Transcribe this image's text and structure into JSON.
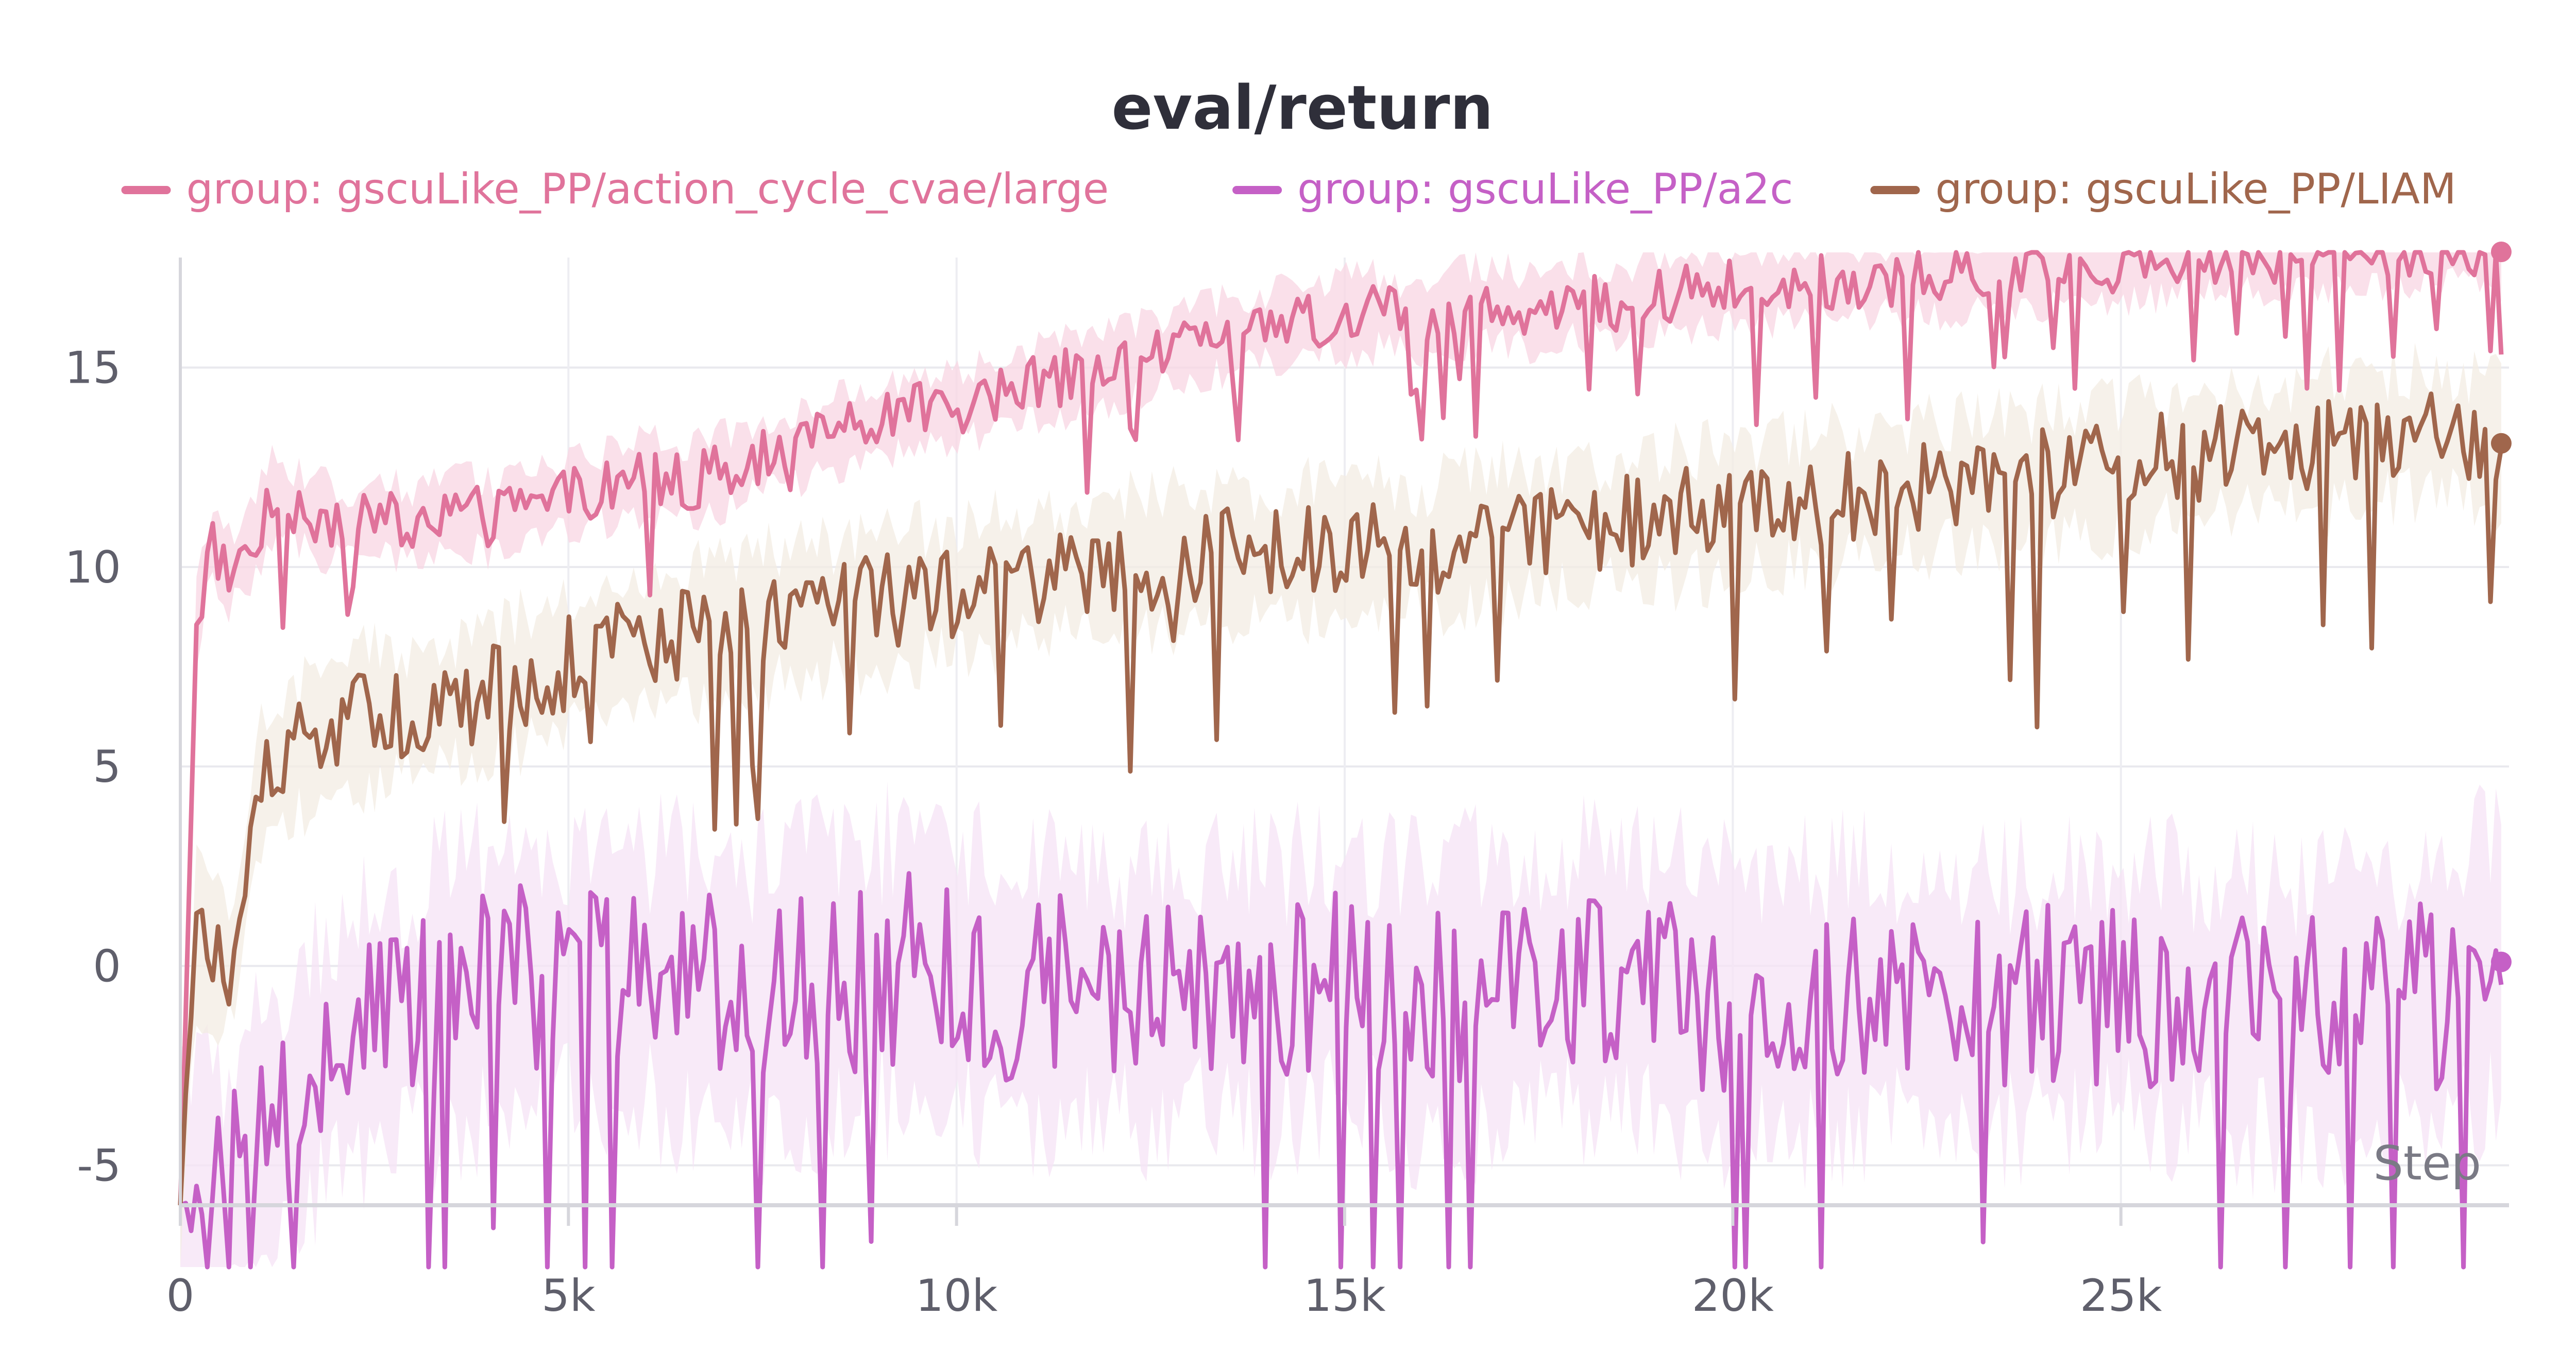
{
  "chart_data": {
    "type": "line",
    "title": "eval/return",
    "xlabel": "Step",
    "ylabel": "",
    "xlim": [
      0,
      30000
    ],
    "ylim": [
      -6,
      17.5
    ],
    "xticks": [
      0,
      5000,
      10000,
      15000,
      20000,
      25000
    ],
    "xtick_labels": [
      "0",
      "5k",
      "10k",
      "15k",
      "20k",
      "25k"
    ],
    "yticks": [
      -5,
      0,
      5,
      10,
      15
    ],
    "ytick_labels": [
      "-5",
      "0",
      "5",
      "10",
      "15"
    ],
    "grid": true,
    "legend_position": "top",
    "series": [
      {
        "name": "group: gscuLike_PP/action_cycle_cvae/large",
        "color": "#e0739b",
        "band_color": "#f8d6e3",
        "x": [
          0,
          200,
          400,
          600,
          900,
          1200,
          1500,
          1800,
          2200,
          2600,
          3000,
          3500,
          4000,
          4500,
          5000,
          5500,
          6000,
          6500,
          7000,
          7500,
          8000,
          8500,
          9000,
          9500,
          10000,
          10500,
          11000,
          11500,
          12000,
          12500,
          13000,
          13500,
          14000,
          14500,
          15000,
          15500,
          16000,
          16500,
          17000,
          17500,
          18000,
          18500,
          19000,
          19500,
          20000,
          21000,
          22000,
          23000,
          24000,
          25000,
          26000,
          27000,
          28000,
          29000,
          29900
        ],
        "values": [
          -6,
          8.5,
          10.7,
          9.8,
          10.5,
          11.8,
          11.5,
          11.2,
          11.0,
          11.3,
          11.0,
          11.5,
          11.2,
          11.6,
          11.8,
          12.0,
          12.3,
          12.1,
          12.4,
          12.8,
          13.0,
          13.4,
          13.6,
          13.9,
          14.0,
          14.3,
          14.6,
          14.8,
          15.0,
          15.3,
          15.6,
          15.8,
          16.0,
          16.2,
          16.3,
          16.4,
          16.1,
          16.5,
          16.6,
          16.3,
          16.7,
          16.5,
          16.8,
          16.9,
          17.0,
          17.1,
          17.2,
          17.3,
          17.4,
          17.6,
          17.7,
          17.8,
          17.9,
          18.0,
          17.9
        ]
      },
      {
        "name": "group: gscuLike_PP/a2c",
        "color": "#c560c6",
        "band_color": "#f5e3f5",
        "x": [
          0,
          300,
          600,
          900,
          1200,
          1500,
          1800,
          2200,
          2600,
          3000,
          3500,
          4000,
          4500,
          5000,
          5500,
          6000,
          6500,
          7000,
          7500,
          8000,
          8500,
          9000,
          9500,
          10000,
          10500,
          11000,
          11500,
          12000,
          12500,
          13000,
          13500,
          14000,
          14500,
          15000,
          15500,
          16000,
          16500,
          17000,
          17500,
          18000,
          18500,
          19000,
          19500,
          20000,
          21000,
          22000,
          23000,
          24000,
          25000,
          26000,
          27000,
          28000,
          29000,
          29900
        ],
        "values": [
          -6,
          -6,
          -6,
          -4.5,
          -4.2,
          -3.5,
          -2.5,
          -1.8,
          -1.5,
          -1.2,
          -0.8,
          -0.5,
          -0.3,
          -0.2,
          -0.4,
          -0.3,
          -0.5,
          -0.6,
          -0.8,
          -0.5,
          -0.4,
          -0.2,
          0.1,
          -0.3,
          -0.6,
          -0.8,
          -0.5,
          -0.7,
          -0.9,
          -0.6,
          -0.4,
          -0.8,
          -0.5,
          -0.3,
          -0.6,
          -1.0,
          -0.7,
          -0.8,
          -0.5,
          -0.4,
          -0.2,
          -0.5,
          -0.8,
          -1.0,
          -0.9,
          -0.7,
          -1.1,
          -0.8,
          -0.6,
          -0.9,
          -1.2,
          -1.0,
          -0.8,
          0.1
        ]
      },
      {
        "name": "group: gscuLike_PP/LIAM",
        "color": "#a0664c",
        "band_color": "#f3ece3",
        "x": [
          0,
          200,
          400,
          700,
          1000,
          1300,
          1600,
          2000,
          2400,
          2800,
          3200,
          3600,
          4000,
          4500,
          5000,
          5500,
          6000,
          6500,
          7000,
          7500,
          8000,
          8500,
          9000,
          9500,
          10000,
          10500,
          11000,
          11500,
          12000,
          12500,
          13000,
          13500,
          14000,
          14500,
          15000,
          15500,
          16000,
          16500,
          17000,
          17500,
          18000,
          18500,
          19000,
          19500,
          20000,
          21000,
          22000,
          23000,
          24000,
          25000,
          26000,
          27000,
          28000,
          29000,
          29900
        ],
        "values": [
          -6,
          0.8,
          0.2,
          0.1,
          4.5,
          5.0,
          5.5,
          6.0,
          6.2,
          6.3,
          6.5,
          6.6,
          6.8,
          7.2,
          7.6,
          7.9,
          8.1,
          8.3,
          8.5,
          8.7,
          8.9,
          9.0,
          9.1,
          9.3,
          9.4,
          9.6,
          9.8,
          9.9,
          10.0,
          10.1,
          10.2,
          10.3,
          10.2,
          10.4,
          10.5,
          10.6,
          10.4,
          10.7,
          10.8,
          10.9,
          11.0,
          11.1,
          11.2,
          11.3,
          11.4,
          11.7,
          11.9,
          12.1,
          12.3,
          12.5,
          12.8,
          13.0,
          13.2,
          13.4,
          13.1
        ]
      }
    ]
  }
}
